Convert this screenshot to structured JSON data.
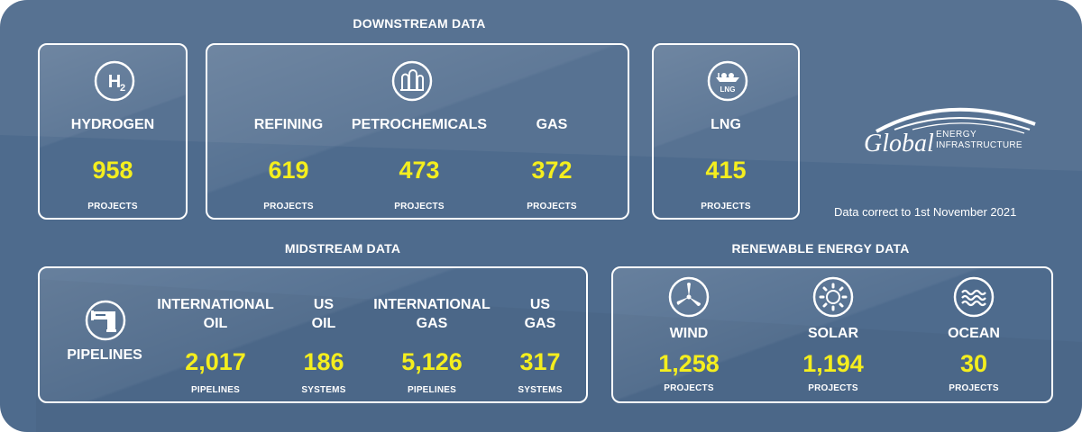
{
  "sections": {
    "downstream": "DOWNSTREAM DATA",
    "midstream": "MIDSTREAM DATA",
    "renewable": "RENEWABLE ENERGY DATA"
  },
  "downstream": {
    "hydrogen": {
      "icon": "h2-icon",
      "icon_text": "H",
      "icon_sub": "2",
      "label": "HYDROGEN",
      "value": "958",
      "unit": "PROJECTS"
    },
    "refining": {
      "label": "REFINING",
      "value": "619",
      "unit": "PROJECTS"
    },
    "petrochemicals": {
      "label": "PETROCHEMICALS",
      "value": "473",
      "unit": "PROJECTS"
    },
    "gas": {
      "label": "GAS",
      "value": "372",
      "unit": "PROJECTS"
    },
    "shared_icon": "refinery-tanks-icon",
    "lng": {
      "icon": "lng-ship-icon",
      "icon_text": "LNG",
      "label": "LNG",
      "value": "415",
      "unit": "PROJECTS"
    }
  },
  "midstream": {
    "pipelines": {
      "icon": "pipe-icon",
      "label": "PIPELINES"
    },
    "international_oil": {
      "label_line1": "INTERNATIONAL",
      "label_line2": "OIL",
      "value": "2,017",
      "unit": "PIPELINES"
    },
    "us_oil": {
      "label_line1": "US",
      "label_line2": "OIL",
      "value": "186",
      "unit": "SYSTEMS"
    },
    "international_gas": {
      "label_line1": "INTERNATIONAL",
      "label_line2": "GAS",
      "value": "5,126",
      "unit": "PIPELINES"
    },
    "us_gas": {
      "label_line1": "US",
      "label_line2": "GAS",
      "value": "317",
      "unit": "SYSTEMS"
    }
  },
  "renewable": {
    "wind": {
      "icon": "wind-turbine-icon",
      "label": "WIND",
      "value": "1,258",
      "unit": "PROJECTS"
    },
    "solar": {
      "icon": "sun-icon",
      "label": "SOLAR",
      "value": "1,194",
      "unit": "PROJECTS"
    },
    "ocean": {
      "icon": "waves-icon",
      "label": "OCEAN",
      "value": "30",
      "unit": "PROJECTS"
    }
  },
  "logo": {
    "word": "Global",
    "line1": "ENERGY",
    "line2": "INFRASTRUCTURE"
  },
  "note": "Data correct to 1st November 2021",
  "colors": {
    "background": "#4e6b8d",
    "value": "#f4ee1e",
    "text": "#ffffff"
  }
}
